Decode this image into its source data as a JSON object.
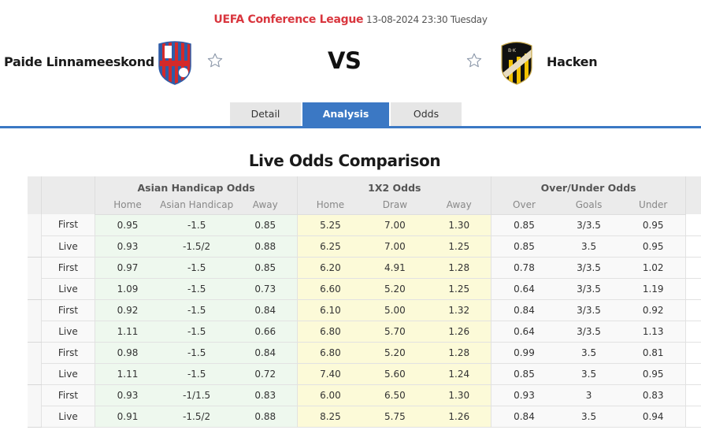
{
  "header": {
    "league": "UEFA Conference League",
    "datetime": "13-08-2024 23:30 Tuesday",
    "vs_label": "VS",
    "home_team": {
      "name": "Paide Linnameeskond",
      "logo_colors": [
        "#2f5da8",
        "#d42a2a"
      ]
    },
    "away_team": {
      "name": "Hacken",
      "logo_colors": [
        "#111111",
        "#f2c200"
      ]
    }
  },
  "tabs": [
    {
      "label": "Detail",
      "active": false
    },
    {
      "label": "Analysis",
      "active": true
    },
    {
      "label": "Odds",
      "active": false
    }
  ],
  "section_title": "Live Odds Comparison",
  "table": {
    "groups": [
      "Asian Handicap Odds",
      "1X2 Odds",
      "Over/Under Odds"
    ],
    "subheaders": {
      "asian_handicap": [
        "Home",
        "Asian Handicap",
        "Away"
      ],
      "x12": [
        "Home",
        "Draw",
        "Away"
      ],
      "over_under": [
        "Over",
        "Goals",
        "Under"
      ]
    },
    "rows": [
      {
        "type": "First",
        "ah": [
          "0.95",
          "-1.5",
          "0.85"
        ],
        "x12": [
          "5.25",
          "7.00",
          "1.30"
        ],
        "ou": [
          "0.85",
          "3/3.5",
          "0.95"
        ]
      },
      {
        "type": "Live",
        "ah": [
          "0.93",
          "-1.5/2",
          "0.88"
        ],
        "x12": [
          "6.25",
          "7.00",
          "1.25"
        ],
        "ou": [
          "0.85",
          "3.5",
          "0.95"
        ]
      },
      {
        "type": "First",
        "ah": [
          "0.97",
          "-1.5",
          "0.85"
        ],
        "x12": [
          "6.20",
          "4.91",
          "1.28"
        ],
        "ou": [
          "0.78",
          "3/3.5",
          "1.02"
        ]
      },
      {
        "type": "Live",
        "ah": [
          "1.09",
          "-1.5",
          "0.73"
        ],
        "x12": [
          "6.60",
          "5.20",
          "1.25"
        ],
        "ou": [
          "0.64",
          "3/3.5",
          "1.19"
        ]
      },
      {
        "type": "First",
        "ah": [
          "0.92",
          "-1.5",
          "0.84"
        ],
        "x12": [
          "6.10",
          "5.00",
          "1.32"
        ],
        "ou": [
          "0.84",
          "3/3.5",
          "0.92"
        ]
      },
      {
        "type": "Live",
        "ah": [
          "1.11",
          "-1.5",
          "0.66"
        ],
        "x12": [
          "6.80",
          "5.70",
          "1.26"
        ],
        "ou": [
          "0.64",
          "3/3.5",
          "1.13"
        ]
      },
      {
        "type": "First",
        "ah": [
          "0.98",
          "-1.5",
          "0.84"
        ],
        "x12": [
          "6.80",
          "5.20",
          "1.28"
        ],
        "ou": [
          "0.99",
          "3.5",
          "0.81"
        ]
      },
      {
        "type": "Live",
        "ah": [
          "1.11",
          "-1.5",
          "0.72"
        ],
        "x12": [
          "7.40",
          "5.60",
          "1.24"
        ],
        "ou": [
          "0.85",
          "3.5",
          "0.95"
        ]
      },
      {
        "type": "First",
        "ah": [
          "0.93",
          "-1/1.5",
          "0.83"
        ],
        "x12": [
          "6.00",
          "6.50",
          "1.30"
        ],
        "ou": [
          "0.93",
          "3",
          "0.83"
        ]
      },
      {
        "type": "Live",
        "ah": [
          "0.91",
          "-1.5/2",
          "0.88"
        ],
        "x12": [
          "8.25",
          "5.75",
          "1.26"
        ],
        "ou": [
          "0.84",
          "3.5",
          "0.94"
        ]
      }
    ]
  },
  "colors": {
    "accent_blue": "#3b78c4",
    "league_red": "#d9363e",
    "ah_bg": "#eef8ee",
    "x12_bg": "#fcfad8",
    "header_bg": "#ebebeb"
  },
  "icons": {
    "favorite_home": "star-outline-icon",
    "favorite_away": "star-outline-icon"
  }
}
